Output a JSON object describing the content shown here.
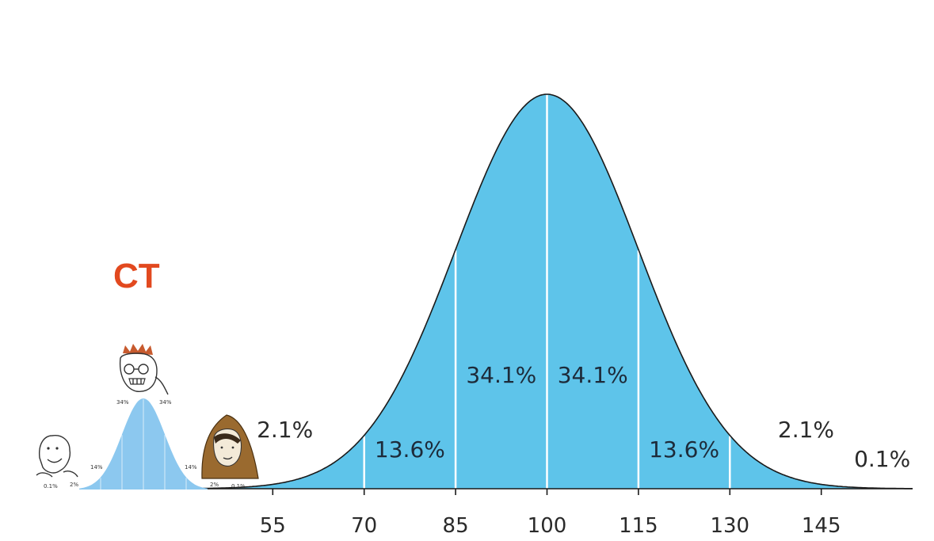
{
  "chart_data": {
    "type": "area",
    "distribution": "normal",
    "mean": 100,
    "sd": 15,
    "x_ticks": [
      "55",
      "70",
      "85",
      "100",
      "115",
      "130",
      "145"
    ],
    "xlim": [
      40,
      160
    ],
    "grid": false,
    "fill_color": "#5ec4ea",
    "outline_color": "#1a1a1a",
    "divider_color": "#ffffff",
    "region_labels": [
      {
        "text": "2.1%",
        "x": 57
      },
      {
        "text": "13.6%",
        "x": 77.5
      },
      {
        "text": "34.1%",
        "x": 92.5
      },
      {
        "text": "34.1%",
        "x": 107.5
      },
      {
        "text": "13.6%",
        "x": 122.5
      },
      {
        "text": "2.1%",
        "x": 142.5
      },
      {
        "text": "0.1%",
        "x": 155
      }
    ]
  },
  "inset": {
    "title": "CT",
    "title_color": "#e2491f",
    "labels": [
      "34%",
      "34%",
      "14%",
      "14%",
      "2%",
      "2%",
      "0.1%",
      "0.1%"
    ],
    "characters": [
      "low-iq-wojak-icon",
      "nerd-wojak-icon",
      "hooded-wojak-icon"
    ]
  }
}
